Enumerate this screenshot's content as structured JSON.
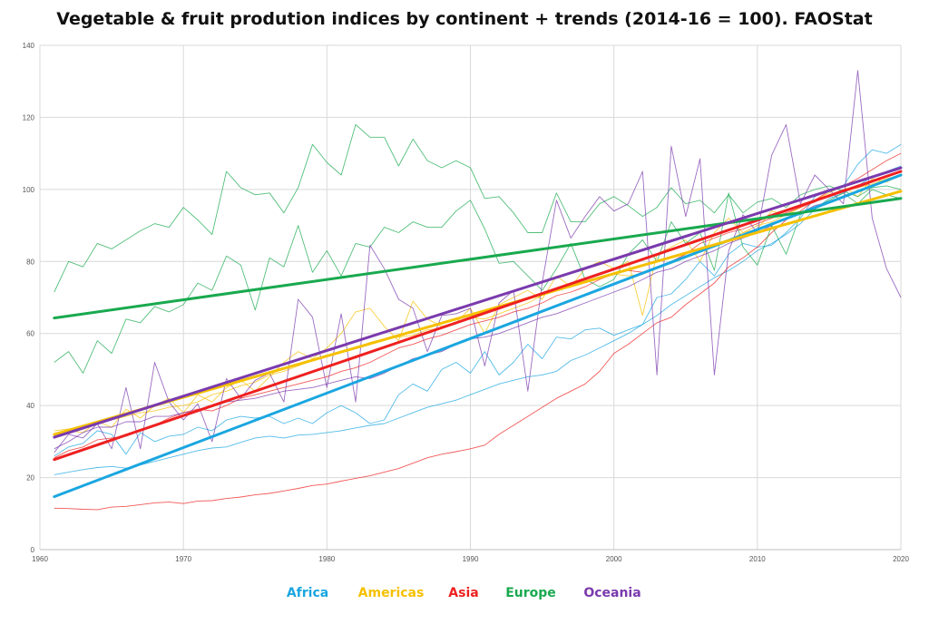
{
  "chart_data": {
    "type": "line",
    "title": "Vegetable & fruit prodution indices by continent + trends (2014-16 = 100). FAOStat",
    "xlabel": "",
    "ylabel": "",
    "xlim": [
      1960,
      2020
    ],
    "ylim": [
      0,
      140
    ],
    "x_ticks": [
      "1960",
      "1970",
      "1980",
      "1990",
      "2000",
      "2010",
      "2020"
    ],
    "y_ticks": [
      "0",
      "20",
      "40",
      "60",
      "80",
      "100",
      "120",
      "140"
    ],
    "grid": true,
    "legend_position": "bottom",
    "x": [
      1961,
      1962,
      1963,
      1964,
      1965,
      1966,
      1967,
      1968,
      1969,
      1970,
      1971,
      1972,
      1973,
      1974,
      1975,
      1976,
      1977,
      1978,
      1979,
      1980,
      1981,
      1982,
      1983,
      1984,
      1985,
      1986,
      1987,
      1988,
      1989,
      1990,
      1991,
      1992,
      1993,
      1994,
      1995,
      1996,
      1997,
      1998,
      1999,
      2000,
      2001,
      2002,
      2003,
      2004,
      2005,
      2006,
      2007,
      2008,
      2009,
      2010,
      2011,
      2012,
      2013,
      2014,
      2015,
      2016,
      2017,
      2018,
      2019,
      2020
    ],
    "series": [
      {
        "name": "Africa",
        "color": "#1aa6e0",
        "values": [
          20.8,
          21.5,
          22.2,
          22.8,
          23.1,
          22.6,
          23.5,
          24.5,
          25.5,
          26.5,
          27.5,
          28.2,
          28.5,
          29.8,
          31.0,
          31.5,
          31.0,
          31.8,
          32.0,
          32.5,
          33.0,
          33.8,
          34.5,
          35.0,
          36.5,
          38.0,
          39.5,
          40.5,
          41.5,
          43.0,
          44.5,
          46.0,
          47.0,
          48.0,
          48.5,
          49.5,
          52.5,
          54.0,
          56.0,
          58.0,
          60.0,
          62.5,
          65.0,
          68.0,
          70.5,
          73.0,
          75.5,
          77.5,
          80.0,
          83.0,
          85.0,
          87.5,
          90.5,
          94.5,
          97.5,
          99.0,
          101.0,
          103.5,
          105.0,
          106.5
        ]
      },
      {
        "name": "Africa",
        "color": "#1aa6e0",
        "values": [
          26.0,
          28.5,
          29.5,
          33.0,
          32.0,
          26.5,
          32.5,
          30.0,
          31.5,
          32.0,
          34.0,
          33.0,
          36.0,
          37.0,
          36.5,
          37.0,
          35.0,
          36.5,
          35.0,
          38.0,
          40.0,
          38.0,
          35.0,
          36.0,
          43.0,
          46.0,
          44.0,
          50.0,
          52.0,
          49.0,
          55.0,
          48.5,
          52.0,
          57.0,
          53.0,
          59.0,
          58.5,
          61.0,
          61.5,
          59.5,
          61.0,
          62.5,
          70.0,
          71.0,
          75.0,
          80.0,
          76.0,
          82.0,
          85.0,
          84.0,
          84.5,
          88.0,
          92.0,
          98.0,
          100.0,
          101.0,
          107.0,
          111.0,
          110.0,
          112.5
        ]
      },
      {
        "name": "Americas",
        "color": "#f5c000",
        "values": [
          33.0,
          33.5,
          34.0,
          35.0,
          36.0,
          37.0,
          38.0,
          38.5,
          39.5,
          40.0,
          41.0,
          43.0,
          44.0,
          45.5,
          46.5,
          48.5,
          49.5,
          51.0,
          52.5,
          54.0,
          55.0,
          56.0,
          57.5,
          58.5,
          59.0,
          59.5,
          61.0,
          61.5,
          63.0,
          64.5,
          64.0,
          65.5,
          67.0,
          68.5,
          70.5,
          72.0,
          73.0,
          74.5,
          75.5,
          76.5,
          76.0,
          76.5,
          78.0,
          79.5,
          81.0,
          83.0,
          84.0,
          86.0,
          88.0,
          90.0,
          91.0,
          93.0,
          95.0,
          97.0,
          98.5,
          99.5,
          100.5,
          101.5,
          103.0,
          104.0
        ]
      },
      {
        "name": "Americas",
        "color": "#f5c000",
        "values": [
          32.0,
          33.0,
          32.5,
          35.5,
          34.0,
          39.0,
          36.5,
          40.0,
          42.0,
          38.0,
          43.0,
          41.0,
          45.0,
          47.0,
          44.0,
          48.0,
          52.0,
          55.0,
          53.0,
          56.0,
          60.0,
          66.0,
          67.0,
          62.0,
          58.0,
          69.0,
          64.0,
          62.0,
          63.0,
          67.0,
          60.0,
          68.0,
          70.0,
          72.0,
          69.5,
          76.0,
          73.0,
          78.0,
          80.0,
          78.0,
          80.0,
          65.0,
          82.0,
          84.0,
          86.0,
          80.0,
          88.0,
          92.0,
          88.0,
          89.0,
          94.0,
          93.0,
          95.0,
          97.0,
          99.0,
          101.0,
          98.0,
          103.0,
          102.0,
          104.0
        ]
      },
      {
        "name": "Asia",
        "color": "#ee2020",
        "values": [
          11.5,
          11.4,
          11.2,
          11.1,
          11.8,
          12.0,
          12.5,
          13.0,
          13.2,
          12.8,
          13.5,
          13.6,
          14.2,
          14.6,
          15.2,
          15.6,
          16.3,
          17.0,
          17.8,
          18.2,
          19.0,
          19.8,
          20.5,
          21.5,
          22.5,
          24.0,
          25.5,
          26.5,
          27.2,
          28.0,
          29.0,
          32.0,
          34.5,
          37.0,
          39.5,
          42.0,
          44.0,
          46.0,
          49.5,
          54.5,
          57.0,
          60.0,
          63.0,
          64.5,
          68.0,
          71.0,
          74.0,
          78.5,
          81.0,
          84.0,
          88.0,
          91.5,
          94.0,
          97.0,
          99.5,
          101.0,
          103.0,
          105.5,
          108.0,
          110.0
        ]
      },
      {
        "name": "Asia",
        "color": "#ee2020",
        "values": [
          25.5,
          27.5,
          28.5,
          30.5,
          31.0,
          31.5,
          33.0,
          34.5,
          36.5,
          38.0,
          39.0,
          38.5,
          40.0,
          42.0,
          43.0,
          44.0,
          45.0,
          46.0,
          47.0,
          48.0,
          49.5,
          50.5,
          52.0,
          54.0,
          56.0,
          57.0,
          58.5,
          59.5,
          61.0,
          62.5,
          63.5,
          64.5,
          66.0,
          67.0,
          68.5,
          70.5,
          71.5,
          73.0,
          75.0,
          76.5,
          77.5,
          77.0,
          78.5,
          80.0,
          82.0,
          85.0,
          86.5,
          88.0,
          89.0,
          90.5,
          92.0,
          93.5,
          95.0,
          96.5,
          98.5,
          100.0,
          100.5,
          102.0,
          103.5,
          105.0
        ]
      },
      {
        "name": "Europe",
        "color": "#19a94f",
        "values": [
          71.5,
          80.0,
          78.5,
          85.0,
          83.5,
          86.0,
          88.5,
          90.5,
          89.5,
          95.0,
          91.5,
          87.5,
          105.0,
          100.5,
          98.5,
          99.0,
          93.5,
          100.5,
          112.5,
          107.5,
          104.0,
          118.0,
          114.5,
          114.5,
          106.5,
          114.0,
          108.0,
          106.0,
          108.0,
          106.0,
          97.5,
          98.0,
          93.5,
          88.0,
          88.0,
          99.0,
          91.0,
          91.0,
          96.0,
          98.0,
          95.5,
          92.5,
          95.0,
          100.5,
          96.0,
          97.0,
          93.5,
          98.5,
          93.5,
          96.5,
          97.5,
          95.0,
          98.5,
          100.0,
          101.0,
          99.5,
          98.0,
          100.5,
          101.0,
          100.0
        ]
      },
      {
        "name": "Europe",
        "color": "#19a94f",
        "values": [
          52.0,
          55.0,
          49.0,
          58.0,
          54.5,
          64.0,
          63.0,
          67.5,
          66.0,
          68.0,
          74.0,
          72.0,
          81.5,
          79.0,
          66.5,
          81.0,
          78.5,
          90.0,
          77.0,
          83.0,
          76.0,
          85.0,
          84.0,
          89.5,
          88.0,
          91.0,
          89.5,
          89.5,
          94.0,
          97.0,
          89.0,
          79.5,
          80.0,
          76.0,
          72.0,
          78.0,
          85.0,
          75.0,
          73.0,
          75.0,
          82.0,
          86.0,
          80.0,
          91.0,
          85.0,
          88.0,
          77.5,
          99.0,
          84.0,
          79.0,
          90.0,
          82.0,
          93.0,
          95.0,
          97.0,
          99.0,
          96.0,
          100.0,
          98.5,
          97.5
        ]
      },
      {
        "name": "Oceania",
        "color": "#7a3aad",
        "values": [
          27.0,
          32.0,
          31.0,
          35.0,
          28.0,
          45.0,
          28.0,
          52.0,
          41.0,
          36.0,
          40.5,
          30.0,
          47.5,
          42.0,
          47.0,
          49.0,
          41.0,
          69.5,
          64.5,
          45.0,
          65.5,
          41.0,
          84.5,
          78.0,
          69.5,
          67.0,
          55.0,
          65.0,
          65.5,
          67.0,
          51.0,
          68.5,
          72.0,
          44.0,
          74.0,
          97.0,
          86.5,
          92.5,
          98.0,
          94.0,
          96.0,
          105.0,
          48.5,
          112.0,
          92.5,
          108.5,
          48.5,
          83.0,
          93.0,
          88.0,
          109.5,
          118.0,
          96.0,
          104.0,
          100.0,
          96.0,
          133.0,
          92.0,
          78.0,
          70.0
        ]
      },
      {
        "name": "Oceania",
        "color": "#7a3aad",
        "values": [
          28.0,
          30.0,
          32.5,
          34.0,
          34.0,
          35.5,
          35.5,
          37.0,
          37.0,
          38.0,
          38.5,
          40.0,
          41.0,
          41.5,
          42.0,
          43.0,
          44.0,
          44.5,
          45.0,
          46.0,
          47.0,
          48.0,
          47.5,
          49.0,
          51.0,
          53.0,
          54.0,
          55.0,
          57.0,
          58.5,
          59.0,
          60.0,
          61.5,
          63.0,
          64.5,
          65.5,
          67.0,
          68.5,
          70.0,
          71.5,
          73.0,
          75.0,
          77.0,
          78.0,
          80.0,
          81.5,
          83.0,
          85.0,
          86.5,
          88.0,
          90.0,
          92.0,
          93.5,
          95.5,
          96.5,
          98.0,
          99.5,
          101.0,
          102.5,
          104.0
        ]
      }
    ],
    "trends": [
      {
        "name": "Africa",
        "color": "#1aa6e0",
        "x": [
          1961,
          2020
        ],
        "y": [
          14.7,
          104.0
        ]
      },
      {
        "name": "Americas",
        "color": "#f5c000",
        "x": [
          1961,
          2020
        ],
        "y": [
          32.0,
          99.5
        ]
      },
      {
        "name": "Asia",
        "color": "#ee2020",
        "x": [
          1961,
          2020
        ],
        "y": [
          25.0,
          105.0
        ]
      },
      {
        "name": "Europe",
        "color": "#19a94f",
        "x": [
          1961,
          2020
        ],
        "y": [
          64.3,
          97.5
        ]
      },
      {
        "name": "Oceania",
        "color": "#7a3aad",
        "x": [
          1961,
          2020
        ],
        "y": [
          31.2,
          106.0
        ]
      }
    ],
    "legend": [
      {
        "label": "Africa",
        "color": "#1aa6e0"
      },
      {
        "label": "Americas",
        "color": "#f5c000"
      },
      {
        "label": "Asia",
        "color": "#ee2020"
      },
      {
        "label": "Europe",
        "color": "#19a94f"
      },
      {
        "label": "Oceania",
        "color": "#7a3aad"
      }
    ]
  }
}
